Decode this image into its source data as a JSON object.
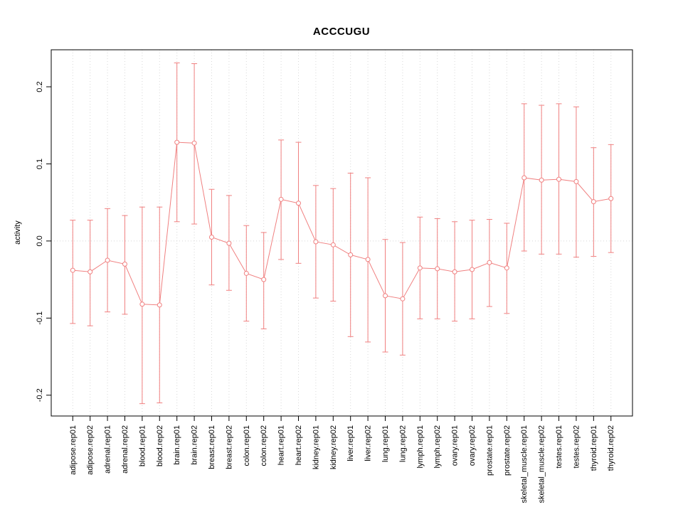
{
  "chart_data": {
    "type": "scatter",
    "title": "ACCCUGU",
    "xlabel": "",
    "ylabel": "activity",
    "ylim": [
      -0.227,
      0.248
    ],
    "yticks": [
      -0.2,
      -0.1,
      0.0,
      0.1,
      0.2
    ],
    "ytick_labels": [
      "-0.2",
      "-0.1",
      "0.0",
      "0.1",
      "0.2"
    ],
    "grid": "vertical-dotted-per-category",
    "zero_line": true,
    "legend": "none",
    "colors": {
      "series": "#f08080",
      "grid": "#d8d8d8",
      "axis": "#000000",
      "background": "#ffffff"
    },
    "categories": [
      "adipose.rep01",
      "adipose.rep02",
      "adrenal.rep01",
      "adrenal.rep02",
      "blood.rep01",
      "blood.rep02",
      "brain.rep01",
      "brain.rep02",
      "breast.rep01",
      "breast.rep02",
      "colon.rep01",
      "colon.rep02",
      "heart.rep01",
      "heart.rep02",
      "kidney.rep01",
      "kidney.rep02",
      "liver.rep01",
      "liver.rep02",
      "lung.rep01",
      "lung.rep02",
      "lymph.rep01",
      "lymph.rep02",
      "ovary.rep01",
      "ovary.rep02",
      "prostate.rep01",
      "prostate.rep02",
      "skeletal_muscle.rep01",
      "skeletal_muscle.rep02",
      "testes.rep01",
      "testes.rep02",
      "thyroid.rep01",
      "thyroid.rep02"
    ],
    "series": [
      {
        "name": "activity",
        "values": [
          -0.038,
          -0.04,
          -0.025,
          -0.03,
          -0.082,
          -0.083,
          0.128,
          0.127,
          0.005,
          -0.003,
          -0.042,
          -0.05,
          0.054,
          0.049,
          -0.001,
          -0.005,
          -0.018,
          -0.024,
          -0.071,
          -0.075,
          -0.035,
          -0.036,
          -0.04,
          -0.037,
          -0.028,
          -0.035,
          0.082,
          0.079,
          0.08,
          0.077,
          0.051,
          0.055
        ]
      },
      {
        "name": "upper_error",
        "values": [
          0.027,
          0.027,
          0.042,
          0.033,
          0.044,
          0.044,
          0.231,
          0.23,
          0.067,
          0.059,
          0.02,
          0.011,
          0.131,
          0.128,
          0.072,
          0.068,
          0.088,
          0.082,
          0.002,
          -0.002,
          0.031,
          0.029,
          0.025,
          0.027,
          0.028,
          0.023,
          0.178,
          0.176,
          0.178,
          0.174,
          0.121,
          0.125
        ]
      },
      {
        "name": "lower_error",
        "values": [
          -0.107,
          -0.11,
          -0.092,
          -0.095,
          -0.211,
          -0.21,
          0.025,
          0.022,
          -0.057,
          -0.064,
          -0.104,
          -0.114,
          -0.024,
          -0.029,
          -0.074,
          -0.078,
          -0.124,
          -0.131,
          -0.144,
          -0.148,
          -0.101,
          -0.101,
          -0.104,
          -0.101,
          -0.085,
          -0.094,
          -0.013,
          -0.017,
          -0.017,
          -0.021,
          -0.02,
          -0.015
        ]
      }
    ]
  }
}
